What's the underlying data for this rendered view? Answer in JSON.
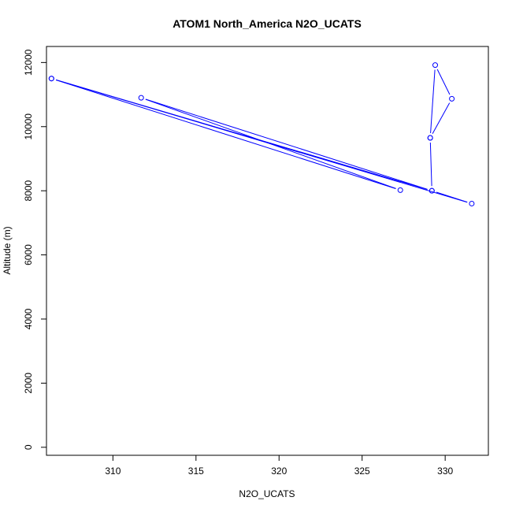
{
  "chart_data": {
    "type": "line",
    "title": "ATOM1 North_America N2O_UCATS",
    "xlabel": "N2O_UCATS",
    "ylabel": "Altitude (m)",
    "xlim": [
      306,
      332.6
    ],
    "ylim": [
      -250,
      12500
    ],
    "xticks": [
      310,
      315,
      320,
      325,
      330
    ],
    "yticks": [
      0,
      2000,
      4000,
      6000,
      8000,
      10000,
      12000
    ],
    "grid": false,
    "series_color": "#0000ff",
    "series": [
      {
        "points": [
          {
            "x": 306.3,
            "y": 11500
          },
          {
            "x": 331.6,
            "y": 7600
          },
          {
            "x": 329.2,
            "y": 8000
          },
          {
            "x": 311.7,
            "y": 10900
          },
          {
            "x": 327.3,
            "y": 8020
          },
          {
            "x": 306.3,
            "y": 11500
          },
          {
            "x": 329.2,
            "y": 8000
          },
          {
            "x": 329.1,
            "y": 9650
          },
          {
            "x": 330.4,
            "y": 10870
          },
          {
            "x": 329.4,
            "y": 11920
          },
          {
            "x": 329.1,
            "y": 9650
          }
        ]
      }
    ]
  }
}
